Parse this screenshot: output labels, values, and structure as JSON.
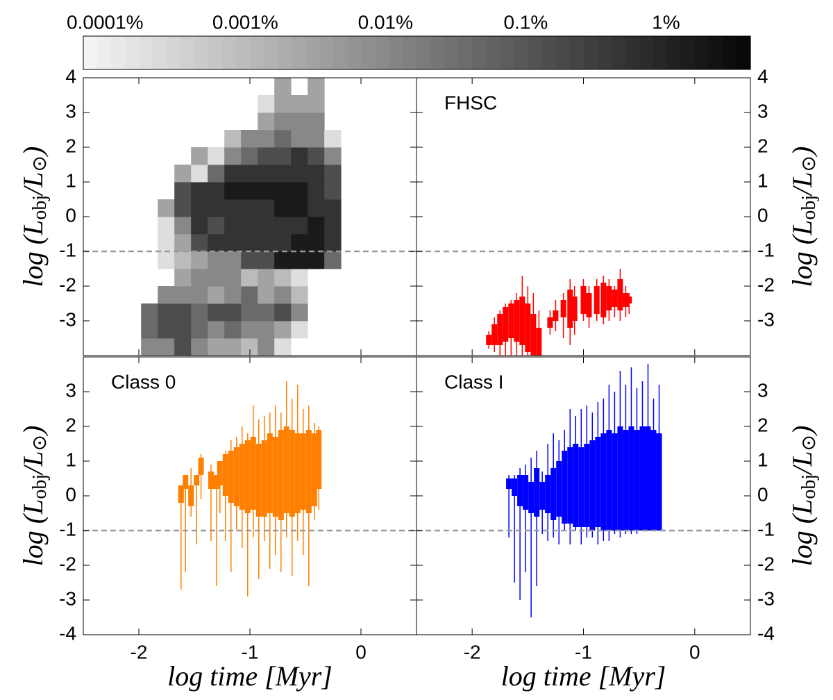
{
  "chart_data": [
    {
      "type": "heatmap",
      "x_edges": [
        -1.98,
        -1.83,
        -1.68,
        -1.53,
        -1.38,
        -1.23,
        -1.08,
        -0.93,
        -0.78,
        -0.63,
        -0.48,
        -0.33,
        -0.18
      ],
      "y_edges": [
        -4,
        -3.5,
        -3,
        -2.5,
        -2,
        -1.5,
        -1,
        -0.5,
        0,
        0.5,
        1,
        1.5,
        2,
        2.5,
        3,
        3.5,
        4
      ],
      "z": [
        [
          0.01,
          0.01,
          0.15,
          0.01,
          0.003,
          0.003,
          0.001,
          0.01,
          0.0002,
          null,
          null,
          null
        ],
        [
          0.04,
          0.15,
          0.15,
          0.04,
          0.01,
          0.04,
          0.01,
          0.01,
          0.003,
          0.0002,
          null,
          null
        ],
        [
          0.04,
          0.15,
          0.15,
          0.04,
          0.15,
          0.15,
          0.04,
          0.04,
          0.15,
          0.01,
          null,
          null
        ],
        [
          null,
          0.01,
          0.01,
          0.01,
          0.003,
          0.01,
          0.04,
          0.003,
          0.01,
          0.001,
          null,
          null
        ],
        [
          null,
          null,
          0.003,
          0.01,
          0.01,
          0.01,
          0.001,
          0.003,
          0.001,
          0.0002,
          null,
          null
        ],
        [
          null,
          0.0002,
          0.001,
          0.003,
          0.01,
          0.01,
          0.15,
          0.15,
          1.5,
          1.5,
          1.5,
          0.04
        ],
        [
          null,
          0.0002,
          0.003,
          0.15,
          0.5,
          0.5,
          0.5,
          0.5,
          0.5,
          1.5,
          1.5,
          0.5
        ],
        [
          null,
          0.0002,
          0.01,
          0.5,
          0.15,
          0.5,
          0.5,
          0.5,
          0.5,
          0.5,
          1.5,
          0.5
        ],
        [
          null,
          0.003,
          0.15,
          0.5,
          0.5,
          0.5,
          0.5,
          0.5,
          1.5,
          1.5,
          0.5,
          0.5
        ],
        [
          null,
          null,
          0.15,
          0.5,
          0.5,
          1.5,
          1.5,
          1.5,
          1.5,
          1.5,
          0.5,
          0.15
        ],
        [
          null,
          null,
          0.003,
          0.0002,
          0.04,
          0.5,
          0.5,
          0.5,
          0.5,
          0.5,
          0.5,
          0.15
        ],
        [
          null,
          null,
          null,
          0.003,
          0.0002,
          0.01,
          0.04,
          0.15,
          0.15,
          0.5,
          0.15,
          0.01
        ],
        [
          null,
          null,
          null,
          null,
          null,
          0.001,
          0.01,
          0.01,
          0.04,
          0.01,
          0.01,
          0.0002
        ],
        [
          null,
          null,
          null,
          null,
          null,
          null,
          null,
          0.003,
          0.01,
          0.01,
          0.01,
          null
        ],
        [
          null,
          null,
          null,
          null,
          null,
          null,
          null,
          0.0002,
          0.003,
          0.003,
          0.003,
          null
        ],
        [
          null,
          null,
          null,
          null,
          null,
          null,
          null,
          null,
          0.003,
          null,
          0.003,
          null
        ]
      ],
      "colorbar": {
        "scale": "log",
        "lim": [
          7e-05,
          4
        ],
        "ticks": [
          {
            "value": 0.0001,
            "label": "0.0001%"
          },
          {
            "value": 0.001,
            "label": "0.001%"
          },
          {
            "value": 0.01,
            "label": "0.01%"
          },
          {
            "value": 0.1,
            "label": "0.1%"
          },
          {
            "value": 1,
            "label": "1%"
          }
        ]
      },
      "xlim": [
        -2.5,
        0.5
      ],
      "ylim": [
        -4,
        4
      ],
      "xticks": [
        -2,
        -1,
        0
      ],
      "xtick_labels": false,
      "yticks": [
        4,
        3,
        2,
        1,
        0,
        -1,
        -2,
        -3
      ],
      "ytick_side": "left",
      "hline": -1,
      "ylabel": {
        "a": "log (L",
        "b": "obj",
        "c": "/L",
        "d": "⊙",
        "e": ")"
      }
    },
    {
      "type": "range",
      "label": "FHSC",
      "color": "#ff0000",
      "x": [
        -1.85,
        -1.8,
        -1.75,
        -1.7,
        -1.65,
        -1.6,
        -1.55,
        -1.5,
        -1.45,
        -1.4,
        -1.3,
        -1.25,
        -1.18,
        -1.12,
        -1.08,
        -1.0,
        -0.95,
        -0.88,
        -0.82,
        -0.77,
        -0.72,
        -0.67,
        -0.62,
        -0.59
      ],
      "low": [
        -3.8,
        -3.9,
        -4,
        -4,
        -4,
        -4,
        -4,
        -4,
        -4,
        -4,
        -3.4,
        -3.3,
        -3.5,
        -3.7,
        -3.4,
        -3.0,
        -3.2,
        -3.0,
        -3.1,
        -3.0,
        -2.9,
        -3.0,
        -2.9,
        -2.8
      ],
      "high": [
        -3.3,
        -2.9,
        -2.7,
        -2.5,
        -2.4,
        -2.2,
        -1.7,
        -2.0,
        -2.2,
        -2.7,
        -2.7,
        -2.4,
        -2.2,
        -1.8,
        -2.0,
        -1.8,
        -2.0,
        -1.8,
        -1.7,
        -1.8,
        -2.0,
        -1.5,
        -2.0,
        -2.2
      ],
      "core_low": [
        -3.7,
        -3.7,
        -3.7,
        -3.6,
        -3.5,
        -3.6,
        -3.7,
        -3.9,
        -4,
        -4,
        -3.2,
        -3.0,
        -2.9,
        -3.2,
        -3.0,
        -2.8,
        -2.9,
        -2.8,
        -2.9,
        -2.7,
        -2.6,
        -2.7,
        -2.6,
        -2.5
      ],
      "core_high": [
        -3.4,
        -3.1,
        -2.8,
        -2.6,
        -2.5,
        -2.4,
        -2.3,
        -2.5,
        -2.8,
        -3.2,
        -2.9,
        -2.7,
        -2.4,
        -2.1,
        -2.3,
        -2.0,
        -2.2,
        -2.0,
        -1.9,
        -2.0,
        -2.1,
        -1.8,
        -2.2,
        -2.3
      ],
      "xlim": [
        -2.5,
        0.5
      ],
      "ylim": [
        -4,
        4
      ],
      "xticks": [
        -2,
        -1,
        0
      ],
      "xtick_labels": false,
      "yticks": [
        4,
        3,
        2,
        1,
        0,
        -1,
        -2,
        -3
      ],
      "ytick_side": "right",
      "hline": -1,
      "ylabel": {
        "a": "log (L",
        "b": "obj",
        "c": "/L",
        "d": "⊙",
        "e": ")"
      }
    },
    {
      "type": "range",
      "label": "Class 0",
      "color": "#ff8000",
      "x": [
        -1.62,
        -1.58,
        -1.53,
        -1.48,
        -1.44,
        -1.35,
        -1.3,
        -1.27,
        -1.22,
        -1.17,
        -1.12,
        -1.07,
        -1.02,
        -0.97,
        -0.92,
        -0.87,
        -0.82,
        -0.77,
        -0.72,
        -0.67,
        -0.62,
        -0.57,
        -0.52,
        -0.47,
        -0.42,
        -0.38
      ],
      "low": [
        -2.7,
        -2.2,
        -0.6,
        -1.4,
        -0.1,
        -1.3,
        -2.6,
        -0.5,
        -1.3,
        -2.2,
        -1.0,
        -1.5,
        -2.9,
        -1.2,
        -2.4,
        -1.3,
        -2.1,
        -1.7,
        -2.2,
        -1.2,
        -2.3,
        -1.3,
        -1.7,
        -2.6,
        -0.7,
        -0.4
      ],
      "high": [
        0.3,
        0.6,
        0.8,
        0.6,
        1.2,
        0.9,
        0.4,
        1.0,
        1.3,
        1.6,
        1.7,
        2.0,
        1.8,
        2.6,
        2.2,
        2.3,
        2.4,
        2.6,
        2.4,
        3.3,
        2.8,
        3.2,
        2.5,
        2.6,
        2.1,
        2.0
      ],
      "core_low": [
        -0.2,
        0.2,
        -0.3,
        0.3,
        0.6,
        0.2,
        0.2,
        0.3,
        0.0,
        -0.2,
        -0.3,
        -0.4,
        -0.5,
        -0.4,
        -0.6,
        -0.6,
        -0.5,
        -0.6,
        -0.7,
        -0.5,
        -0.6,
        -0.5,
        -0.4,
        -0.5,
        -0.3,
        0.2
      ],
      "core_high": [
        0.3,
        0.6,
        0.3,
        0.6,
        1.1,
        0.7,
        0.6,
        1.0,
        1.2,
        1.3,
        1.4,
        1.5,
        1.6,
        1.7,
        1.5,
        1.6,
        1.8,
        1.7,
        1.9,
        2.0,
        1.9,
        1.8,
        1.8,
        1.9,
        1.8,
        1.9
      ],
      "xlim": [
        -2.5,
        0.5
      ],
      "ylim": [
        -4,
        4
      ],
      "xticks": [
        -2,
        -1,
        0
      ],
      "xtick_labels": true,
      "yticks": [
        3,
        2,
        1,
        0,
        -1,
        -2,
        -3,
        -4
      ],
      "ytick_side": "left",
      "hline": -1,
      "ylabel": {
        "a": "log (L",
        "b": "obj",
        "c": "/L",
        "d": "⊙",
        "e": ")"
      },
      "xlabel": "log time [Myr]"
    },
    {
      "type": "range",
      "label": "Class I",
      "color": "#0000ff",
      "x": [
        -1.67,
        -1.62,
        -1.57,
        -1.52,
        -1.47,
        -1.42,
        -1.37,
        -1.32,
        -1.27,
        -1.22,
        -1.17,
        -1.12,
        -1.07,
        -1.02,
        -0.97,
        -0.92,
        -0.87,
        -0.82,
        -0.77,
        -0.72,
        -0.67,
        -0.62,
        -0.57,
        -0.52,
        -0.47,
        -0.42,
        -0.37,
        -0.32
      ],
      "low": [
        -1.2,
        -2.5,
        -3.0,
        -2.2,
        -3.5,
        -2.6,
        -1.1,
        -1.3,
        -1.2,
        -1.4,
        -1.0,
        -1.4,
        -1.0,
        -1.4,
        -1.2,
        -1.2,
        -1.4,
        -1.3,
        -1.3,
        -1.1,
        -1.2,
        -1.1,
        -1.1,
        -1.1,
        -1.0,
        -1.0,
        -1.0,
        -1.0
      ],
      "high": [
        0.6,
        0.6,
        0.8,
        0.9,
        1.1,
        1.3,
        0.7,
        1.5,
        1.8,
        1.6,
        1.9,
        2.5,
        2.3,
        2.5,
        2.6,
        2.4,
        2.7,
        2.8,
        3.2,
        3.0,
        3.6,
        3.2,
        3.7,
        3.1,
        3.3,
        3.8,
        2.8,
        3.2
      ],
      "core_low": [
        0.2,
        0.0,
        -0.3,
        -0.4,
        -0.5,
        -0.6,
        -0.4,
        -0.5,
        -0.7,
        -0.6,
        -0.8,
        -0.8,
        -0.9,
        -0.9,
        -0.9,
        -1.0,
        -0.9,
        -1.0,
        -1.0,
        -1.0,
        -1.0,
        -1.0,
        -1.0,
        -1.0,
        -1.0,
        -1.0,
        -1.0,
        -1.0
      ],
      "core_high": [
        0.5,
        0.5,
        0.6,
        0.6,
        0.4,
        0.8,
        0.4,
        0.6,
        0.8,
        1.0,
        1.3,
        1.4,
        1.5,
        1.4,
        1.5,
        1.6,
        1.7,
        1.8,
        1.9,
        1.8,
        2.0,
        1.9,
        2.0,
        1.9,
        2.0,
        2.0,
        1.9,
        1.8
      ],
      "xlim": [
        -2.5,
        0.5
      ],
      "ylim": [
        -4,
        4
      ],
      "xticks": [
        -2,
        -1,
        0
      ],
      "xtick_labels": true,
      "yticks": [
        3,
        2,
        1,
        0,
        -1,
        -2,
        -3,
        -4
      ],
      "ytick_side": "right",
      "hline": -1,
      "ylabel": {
        "a": "log (L",
        "b": "obj",
        "c": "/L",
        "d": "⊙",
        "e": ")"
      },
      "xlabel": "log time [Myr]"
    }
  ]
}
